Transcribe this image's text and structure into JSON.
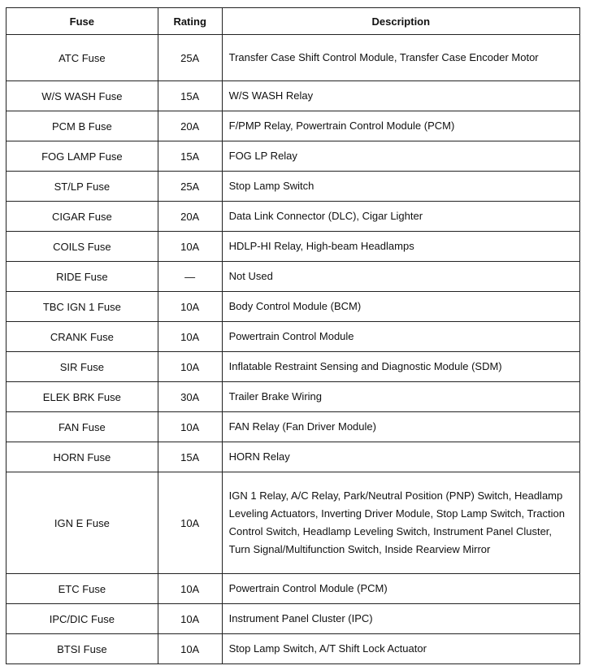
{
  "table": {
    "headers": [
      "Fuse",
      "Rating",
      "Description"
    ],
    "rows": [
      {
        "fuse": "ATC Fuse",
        "rating": "25A",
        "description": "Transfer Case Shift Control Module, Transfer Case Encoder Motor"
      },
      {
        "fuse": "W/S WASH Fuse",
        "rating": "15A",
        "description": "W/S WASH Relay"
      },
      {
        "fuse": "PCM B Fuse",
        "rating": "20A",
        "description": "F/PMP Relay, Powertrain Control Module (PCM)"
      },
      {
        "fuse": "FOG LAMP Fuse",
        "rating": "15A",
        "description": "FOG LP Relay"
      },
      {
        "fuse": "ST/LP Fuse",
        "rating": "25A",
        "description": "Stop Lamp Switch"
      },
      {
        "fuse": "CIGAR Fuse",
        "rating": "20A",
        "description": "Data Link Connector (DLC), Cigar Lighter"
      },
      {
        "fuse": "COILS Fuse",
        "rating": "10A",
        "description": "HDLP-HI Relay, High-beam Headlamps"
      },
      {
        "fuse": "RIDE Fuse",
        "rating": "—",
        "description": "Not Used"
      },
      {
        "fuse": "TBC IGN 1 Fuse",
        "rating": "10A",
        "description": "Body Control Module (BCM)"
      },
      {
        "fuse": "CRANK Fuse",
        "rating": "10A",
        "description": "Powertrain Control Module"
      },
      {
        "fuse": "SIR Fuse",
        "rating": "10A",
        "description": "Inflatable Restraint Sensing and Diagnostic Module (SDM)"
      },
      {
        "fuse": "ELEK BRK Fuse",
        "rating": "30A",
        "description": "Trailer Brake Wiring"
      },
      {
        "fuse": "FAN Fuse",
        "rating": "10A",
        "description": "FAN Relay (Fan Driver Module)"
      },
      {
        "fuse": "HORN Fuse",
        "rating": "15A",
        "description": "HORN Relay"
      },
      {
        "fuse": "IGN E Fuse",
        "rating": "10A",
        "description": "IGN 1 Relay, A/C Relay, Park/Neutral Position (PNP) Switch, Headlamp Leveling Actuators, Inverting Driver Module, Stop Lamp Switch, Traction Control Switch, Headlamp Leveling Switch, Instrument Panel Cluster, Turn Signal/Multifunction Switch, Inside Rearview Mirror"
      },
      {
        "fuse": "ETC Fuse",
        "rating": "10A",
        "description": "Powertrain Control Module (PCM)"
      },
      {
        "fuse": "IPC/DIC Fuse",
        "rating": "10A",
        "description": "Instrument Panel Cluster (IPC)"
      },
      {
        "fuse": "BTSI Fuse",
        "rating": "10A",
        "description": "Stop Lamp Switch, A/T Shift Lock Actuator"
      }
    ]
  }
}
